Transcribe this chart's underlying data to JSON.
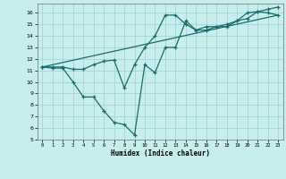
{
  "xlabel": "Humidex (Indice chaleur)",
  "ylabel": "",
  "background_color": "#c8eded",
  "grid_color": "#a8d8d8",
  "line_color": "#1a6b6b",
  "xlim": [
    -0.5,
    23.5
  ],
  "ylim": [
    5,
    16.8
  ],
  "xticks": [
    0,
    1,
    2,
    3,
    4,
    5,
    6,
    7,
    8,
    9,
    10,
    11,
    12,
    13,
    14,
    15,
    16,
    17,
    18,
    19,
    20,
    21,
    22,
    23
  ],
  "yticks": [
    5,
    6,
    7,
    8,
    9,
    10,
    11,
    12,
    13,
    14,
    15,
    16
  ],
  "line1_x": [
    0,
    1,
    2,
    3,
    4,
    5,
    6,
    7,
    8,
    9,
    10,
    11,
    12,
    13,
    14,
    15,
    16,
    17,
    18,
    19,
    20,
    21,
    22,
    23
  ],
  "line1_y": [
    11.3,
    11.2,
    11.2,
    10.0,
    8.7,
    8.7,
    7.5,
    6.5,
    6.3,
    5.4,
    11.5,
    10.8,
    13.0,
    13.0,
    15.3,
    14.5,
    14.8,
    14.8,
    15.0,
    15.3,
    16.0,
    16.1,
    16.0,
    15.8
  ],
  "line2_x": [
    0,
    1,
    2,
    3,
    4,
    5,
    6,
    7,
    8,
    9,
    10,
    11,
    12,
    13,
    14,
    15,
    16,
    17,
    18,
    19,
    20,
    21,
    22,
    23
  ],
  "line2_y": [
    11.3,
    11.3,
    11.3,
    11.1,
    11.1,
    11.5,
    11.8,
    11.9,
    9.5,
    11.5,
    13.0,
    14.0,
    15.8,
    15.8,
    15.0,
    14.5,
    14.5,
    14.8,
    14.8,
    15.3,
    15.5,
    16.1,
    16.3,
    16.5
  ],
  "line3_x": [
    0,
    23
  ],
  "line3_y": [
    11.3,
    15.8
  ]
}
